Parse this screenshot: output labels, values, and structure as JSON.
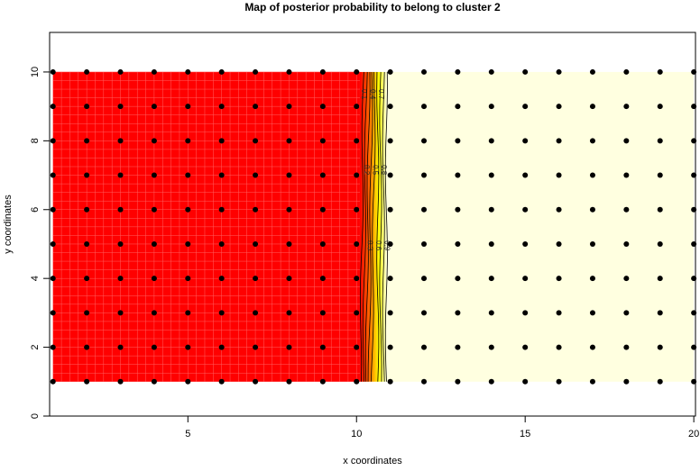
{
  "chart_data": {
    "type": "heatmap",
    "title": "Map of posterior probability to belong to cluster  2",
    "xlabel": "x coordinates",
    "ylabel": "y coordinates",
    "xlim": [
      0.9,
      20.05
    ],
    "ylim": [
      0,
      11.15
    ],
    "xticks": [
      5,
      10,
      15,
      20
    ],
    "yticks": [
      0,
      2,
      4,
      6,
      8,
      10
    ],
    "grid": false,
    "points": {
      "x": [
        1,
        2,
        3,
        4,
        5,
        6,
        7,
        8,
        9,
        10,
        11,
        12,
        13,
        14,
        15,
        16,
        17,
        18,
        19,
        20
      ],
      "y": [
        1,
        2,
        3,
        4,
        5,
        6,
        7,
        8,
        9,
        10
      ]
    },
    "regions": [
      {
        "x_range": [
          1,
          10
        ],
        "y_range": [
          1,
          10
        ],
        "probability": 0,
        "color": "#ff0000"
      },
      {
        "x_range": [
          11,
          20
        ],
        "y_range": [
          1,
          10
        ],
        "probability": 1,
        "color": "#ffffe0"
      }
    ],
    "contour_levels": [
      0.1,
      0.2,
      0.3,
      0.4,
      0.5,
      0.6,
      0.7,
      0.8,
      0.9
    ],
    "contour_labels": [
      "0.1",
      "0.2",
      "0.3",
      "0.4",
      "0.5",
      "0.6",
      "0.7",
      "0.8",
      "0.9"
    ],
    "colors": {
      "low": "#ff0000",
      "high": "#ffffe0",
      "mid": "#ffff00"
    }
  }
}
